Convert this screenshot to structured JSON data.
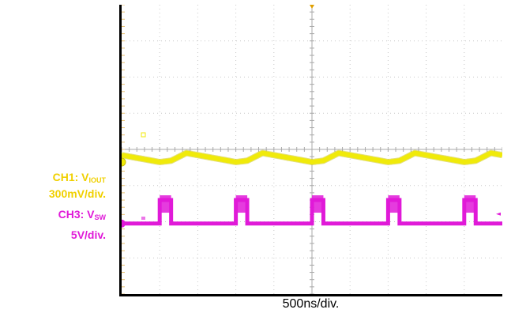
{
  "colors": {
    "ch1": "#f0ea0a",
    "ch1_dark": "#c8c000",
    "ch3": "#e01ad8",
    "grid": "#c8c8c8",
    "center_axis": "#a8a8a8",
    "trigger": "#e0a000"
  },
  "labels": {
    "ch1_name_prefix": "CH1: V",
    "ch1_name_sub": "IOUT",
    "ch1_scale": "300mV/div.",
    "ch3_name_prefix": "CH3: V",
    "ch3_name_sub": "SW",
    "ch3_scale": "5V/div.",
    "time_scale": "500ns/div."
  },
  "chart_data": {
    "type": "line",
    "grid": true,
    "x_divisions": 10,
    "y_divisions": 8,
    "xlim": [
      0,
      5000
    ],
    "x_unit": "ns",
    "ylim": [
      -4,
      4
    ],
    "y_unit": "div",
    "switching_period_ns": 1000,
    "series": [
      {
        "name": "CH1: VIOUT",
        "scale": "300mV/div.",
        "color": "#f0ea0a",
        "baseline_div": -0.35,
        "ripple_peak_to_peak_div": 0.25,
        "shape": "triangle ripple (rise during on-time, fall during off-time)"
      },
      {
        "name": "CH3: VSW",
        "scale": "5V/div.",
        "color": "#e01ad8",
        "low_level_div": -2.05,
        "high_level_div": -1.4,
        "pulse_starts_ns": [
          500,
          1500,
          2500,
          3500,
          4500
        ],
        "pulse_width_ns": 150
      }
    ]
  }
}
